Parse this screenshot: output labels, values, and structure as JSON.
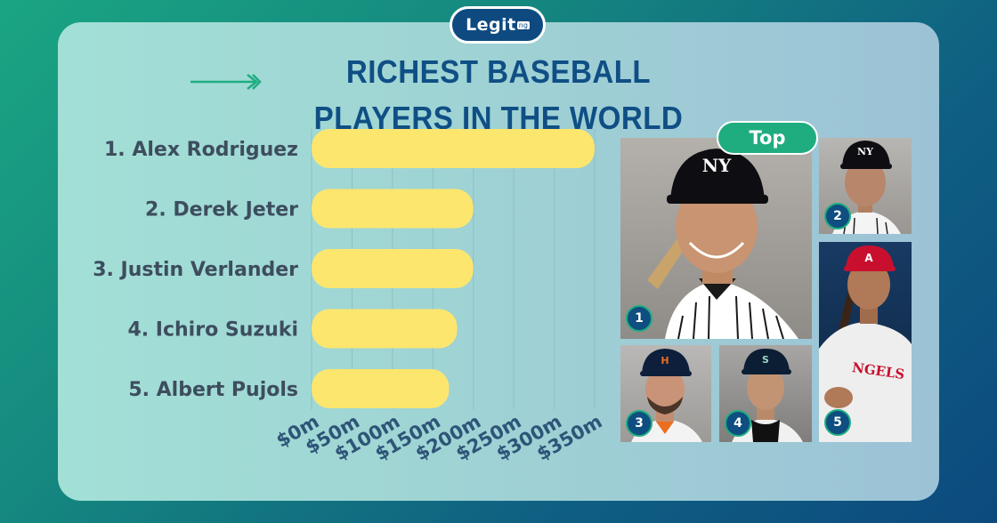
{
  "logo": {
    "text": "Legit",
    "suffix": "ng"
  },
  "title": "RICHEST BASEBALL PLAYERS IN THE WORLD",
  "badge": "Top",
  "colors": {
    "bar": "#fde66e",
    "title": "#0f4f85",
    "label": "#3d4d5e",
    "tick": "#2e5578",
    "badge": "#1fad80"
  },
  "chart_data": {
    "type": "bar",
    "orientation": "horizontal",
    "categories": [
      "1. Alex Rodriguez",
      "2. Derek Jeter",
      "3. Justin Verlander",
      "4. Ichiro Suzuki",
      "5. Albert Pujols"
    ],
    "values": [
      350,
      200,
      200,
      180,
      170
    ],
    "xlim": [
      0,
      350
    ],
    "xticks": [
      "$0m",
      "$50m",
      "$100m",
      "$150m",
      "$200m",
      "$250m",
      "$300m",
      "$350m"
    ],
    "grid": true
  },
  "photos": [
    {
      "number": "1",
      "icon": "player-portrait-yankees-cap"
    },
    {
      "number": "2",
      "icon": "player-portrait-yankees-cap"
    },
    {
      "number": "3",
      "icon": "player-portrait-astros-cap"
    },
    {
      "number": "4",
      "icon": "player-portrait-mariners-cap"
    },
    {
      "number": "5",
      "icon": "player-portrait-angels-cap"
    }
  ]
}
